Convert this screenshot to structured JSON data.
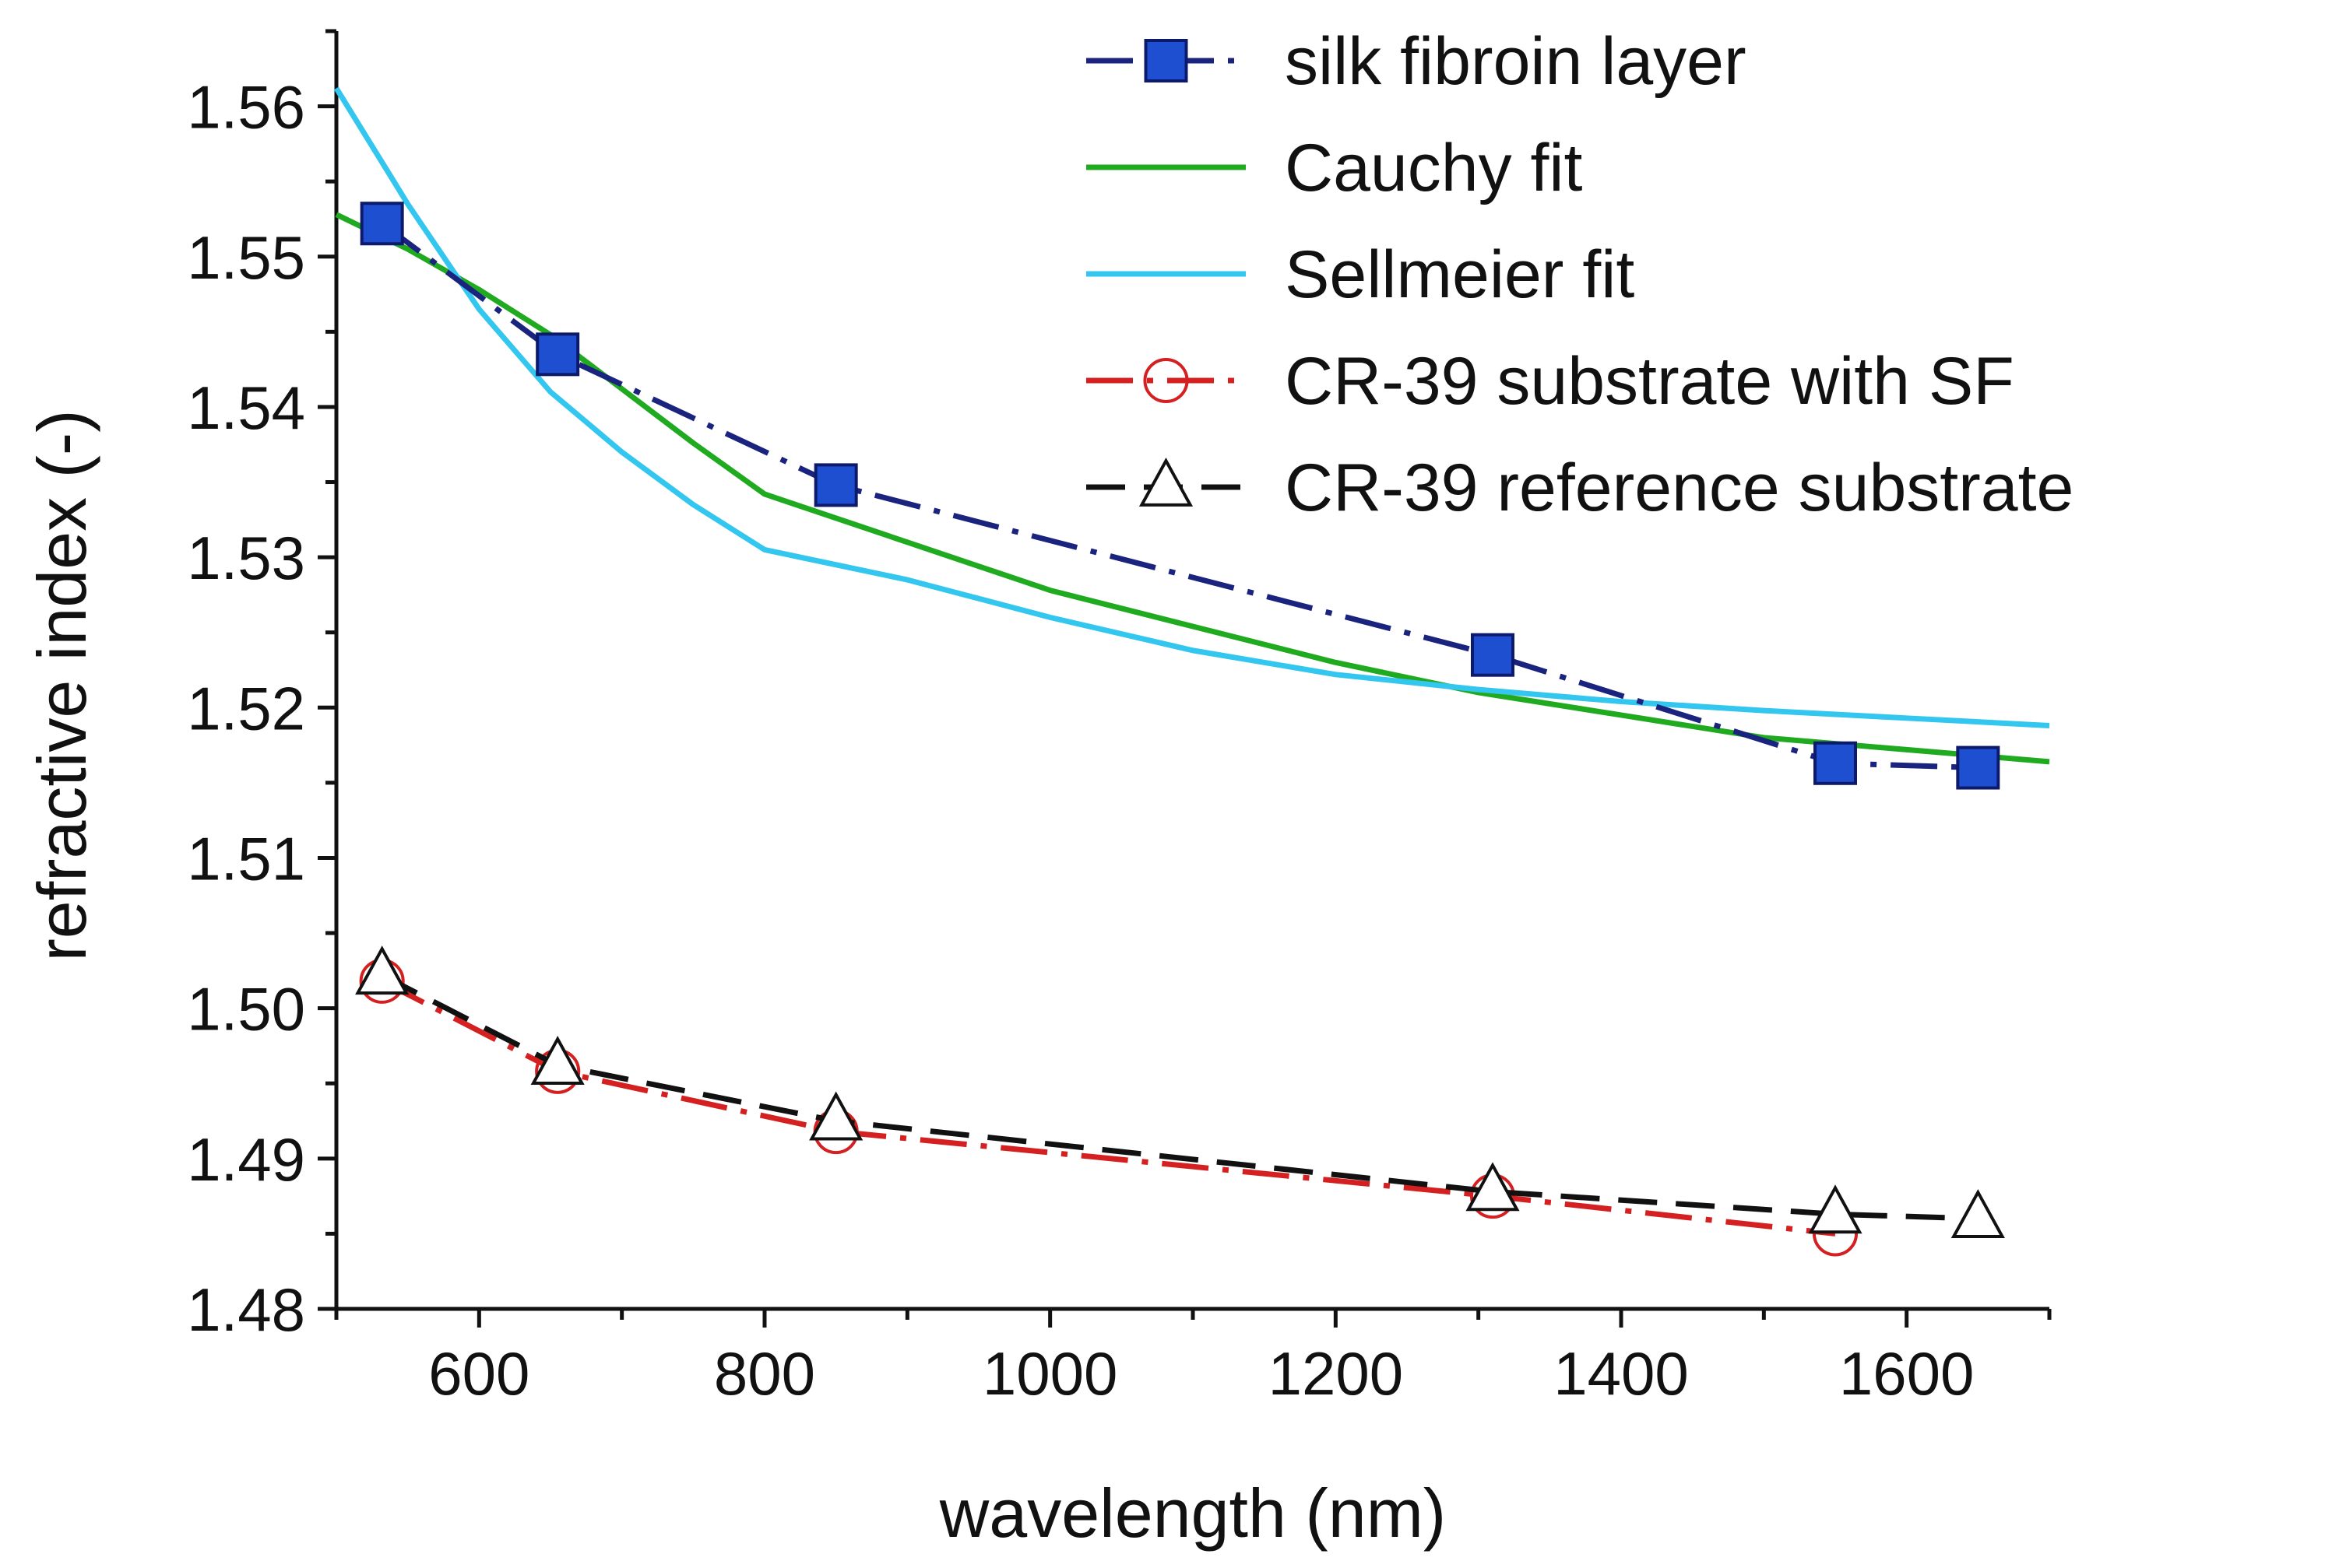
{
  "chart_data": {
    "type": "line",
    "xlabel": "wavelength (nm)",
    "ylabel": "refractive index (-)",
    "xlim": [
      500,
      1700
    ],
    "ylim": [
      1.48,
      1.565
    ],
    "xticks": [
      600,
      800,
      1000,
      1200,
      1400,
      1600
    ],
    "xtick_labels": [
      "600",
      "800",
      "1000",
      "1200",
      "1400",
      "1600"
    ],
    "yticks": [
      1.48,
      1.49,
      1.5,
      1.51,
      1.52,
      1.53,
      1.54,
      1.55,
      1.56
    ],
    "ytick_labels": [
      "1.48",
      "1.49",
      "1.50",
      "1.51",
      "1.52",
      "1.53",
      "1.54",
      "1.55",
      "1.56"
    ],
    "grid": false,
    "legend_position": "top-right",
    "series": [
      {
        "name": "silk fibroin layer",
        "kind": "line+markers",
        "marker": "square",
        "color": "#1a237e",
        "marker_fill": "#1f4fd1",
        "dash": "dash-dot",
        "x": [
          532,
          655,
          850,
          1310,
          1550,
          1650
        ],
        "y": [
          1.5522,
          1.5435,
          1.5348,
          1.5235,
          1.5163,
          1.516
        ]
      },
      {
        "name": "Cauchy fit",
        "kind": "line",
        "color": "#1faa1f",
        "x": [
          500,
          550,
          600,
          650,
          700,
          750,
          800,
          900,
          1000,
          1100,
          1200,
          1300,
          1400,
          1500,
          1600,
          1700
        ],
        "y": [
          1.5528,
          1.5505,
          1.5478,
          1.5448,
          1.5412,
          1.5376,
          1.5342,
          1.531,
          1.5278,
          1.5254,
          1.523,
          1.521,
          1.5195,
          1.518,
          1.5172,
          1.5164
        ]
      },
      {
        "name": "Sellmeier fit",
        "kind": "line",
        "color": "#33c6ee",
        "x": [
          500,
          550,
          600,
          650,
          700,
          750,
          800,
          900,
          1000,
          1100,
          1200,
          1300,
          1400,
          1500,
          1600,
          1700
        ],
        "y": [
          1.5612,
          1.5535,
          1.5465,
          1.541,
          1.537,
          1.5335,
          1.5305,
          1.5285,
          1.526,
          1.5238,
          1.5222,
          1.5212,
          1.5204,
          1.5198,
          1.5193,
          1.5188
        ]
      },
      {
        "name": "CR-39 substrate with SF",
        "kind": "line+markers",
        "marker": "circle",
        "color": "#d42020",
        "marker_fill": "none",
        "dash": "dash-dot",
        "x": [
          532,
          655,
          850,
          1310,
          1550
        ],
        "y": [
          1.5018,
          1.4958,
          1.4918,
          1.4875,
          1.485
        ]
      },
      {
        "name": "CR-39 reference substrate",
        "kind": "line+markers",
        "marker": "triangle",
        "color": "#111111",
        "marker_fill": "#ffffff",
        "dash": "dashed",
        "x": [
          532,
          655,
          850,
          1310,
          1550,
          1650
        ],
        "y": [
          1.5022,
          1.4962,
          1.4925,
          1.4878,
          1.4863,
          1.486
        ]
      }
    ]
  }
}
